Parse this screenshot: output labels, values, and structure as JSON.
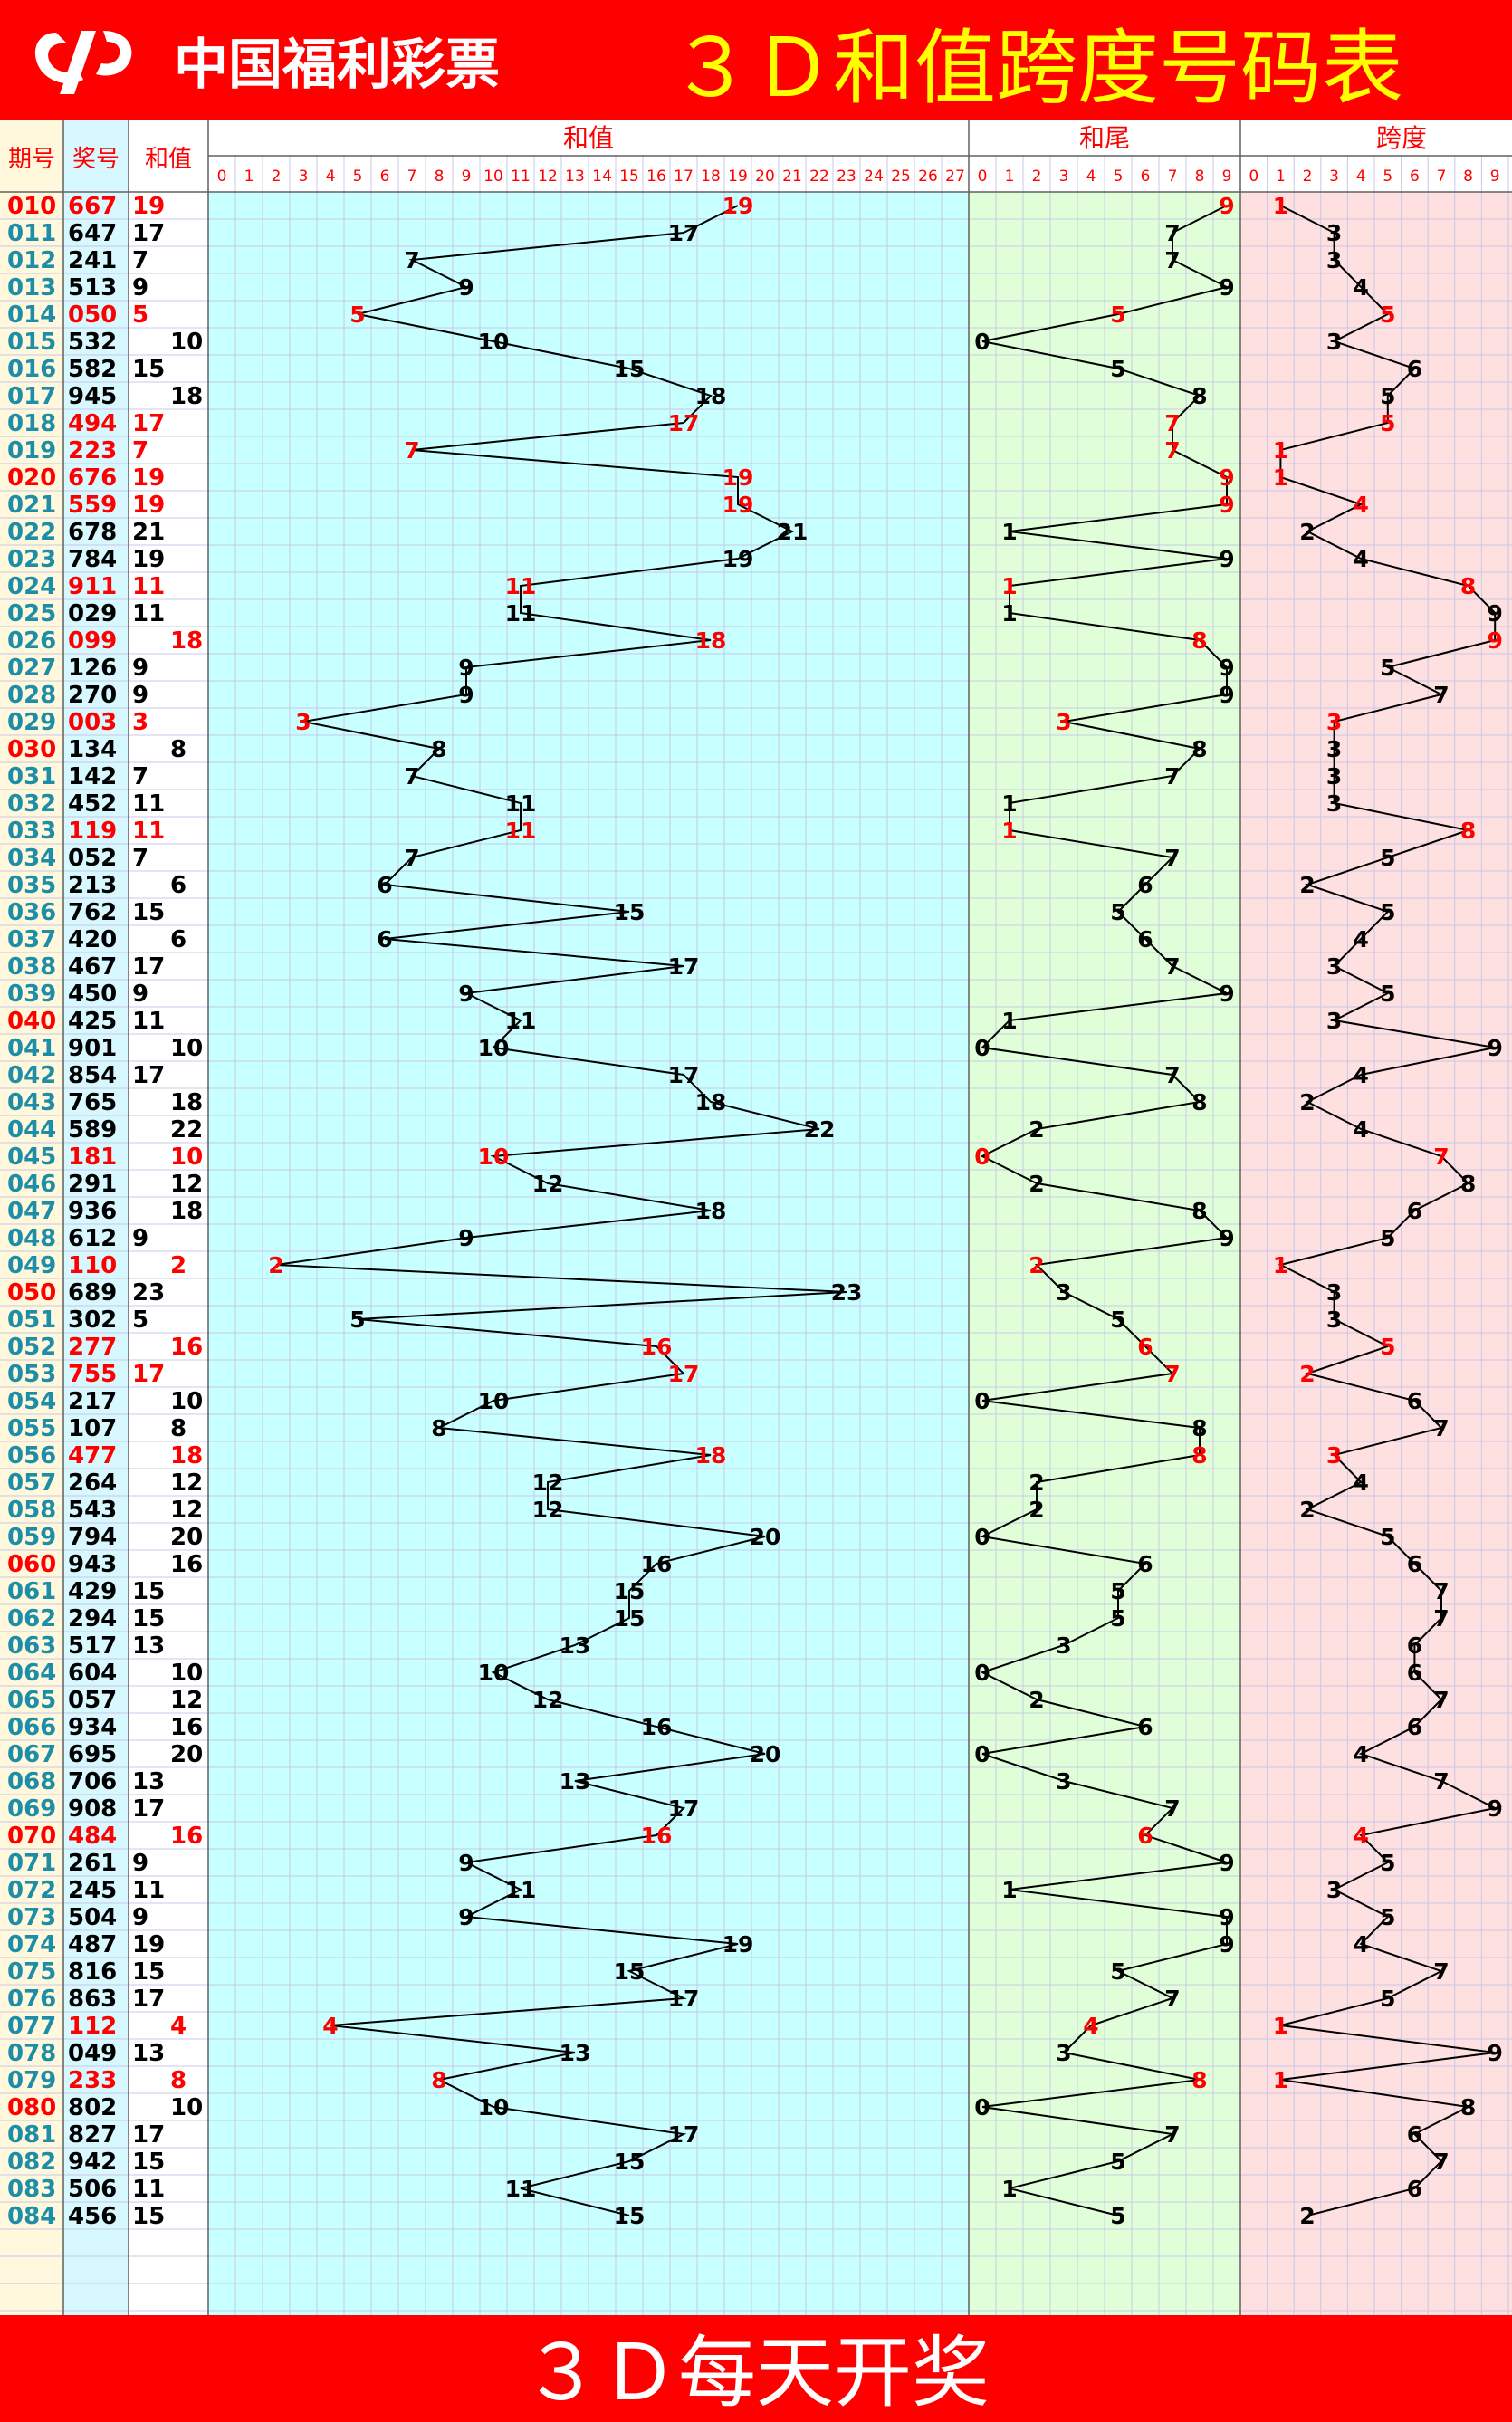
{
  "header": {
    "brand": "中国福利彩票",
    "title": "３Ｄ和值跨度号码表"
  },
  "footer": {
    "text": "３Ｄ每天开奖"
  },
  "columns": {
    "period": "期号",
    "number": "奖号",
    "sum": "和值",
    "sum_chart": "和值",
    "tail_chart": "和尾",
    "span_chart": "跨度"
  },
  "colors": {
    "header_bg": "#ff0000",
    "title_text": "#ffff00",
    "period_text": "#1e8ea8",
    "period_highlight": "#ff0000",
    "highlight_text": "#ff0000",
    "normal_text": "#000000",
    "sum_zone": "#c8ffff",
    "tail_zone": "#e0ffd8",
    "span_zone": "#ffe0e0",
    "period_zone": "#fff8dc",
    "number_zone": "#d8f8ff"
  },
  "chart_data": {
    "type": "line",
    "sum_axis": [
      "0",
      "1",
      "2",
      "3",
      "4",
      "5",
      "6",
      "7",
      "8",
      "9",
      "10",
      "11",
      "12",
      "13",
      "14",
      "15",
      "16",
      "17",
      "18",
      "19",
      "20",
      "21",
      "22",
      "23",
      "24",
      "25",
      "26",
      "27"
    ],
    "tail_axis": [
      "0",
      "1",
      "2",
      "3",
      "4",
      "5",
      "6",
      "7",
      "8",
      "9"
    ],
    "span_axis": [
      "0",
      "1",
      "2",
      "3",
      "4",
      "5",
      "6",
      "7",
      "8",
      "9"
    ],
    "rows": [
      {
        "period": "010",
        "number": "667",
        "sum": 19,
        "tail": 9,
        "span": 1,
        "red": true
      },
      {
        "period": "011",
        "number": "647",
        "sum": 17,
        "tail": 7,
        "span": 3,
        "red": false
      },
      {
        "period": "012",
        "number": "241",
        "sum": 7,
        "tail": 7,
        "span": 3,
        "red": false
      },
      {
        "period": "013",
        "number": "513",
        "sum": 9,
        "tail": 9,
        "span": 4,
        "red": false
      },
      {
        "period": "014",
        "number": "050",
        "sum": 5,
        "tail": 5,
        "span": 5,
        "red": true
      },
      {
        "period": "015",
        "number": "532",
        "sum": 10,
        "tail": 0,
        "span": 3,
        "red": false
      },
      {
        "period": "016",
        "number": "582",
        "sum": 15,
        "tail": 5,
        "span": 6,
        "red": false
      },
      {
        "period": "017",
        "number": "945",
        "sum": 18,
        "tail": 8,
        "span": 5,
        "red": false
      },
      {
        "period": "018",
        "number": "494",
        "sum": 17,
        "tail": 7,
        "span": 5,
        "red": true
      },
      {
        "period": "019",
        "number": "223",
        "sum": 7,
        "tail": 7,
        "span": 1,
        "red": true
      },
      {
        "period": "020",
        "number": "676",
        "sum": 19,
        "tail": 9,
        "span": 1,
        "red": true
      },
      {
        "period": "021",
        "number": "559",
        "sum": 19,
        "tail": 9,
        "span": 4,
        "red": true
      },
      {
        "period": "022",
        "number": "678",
        "sum": 21,
        "tail": 1,
        "span": 2,
        "red": false
      },
      {
        "period": "023",
        "number": "784",
        "sum": 19,
        "tail": 9,
        "span": 4,
        "red": false
      },
      {
        "period": "024",
        "number": "911",
        "sum": 11,
        "tail": 1,
        "span": 8,
        "red": true
      },
      {
        "period": "025",
        "number": "029",
        "sum": 11,
        "tail": 1,
        "span": 9,
        "red": false
      },
      {
        "period": "026",
        "number": "099",
        "sum": 18,
        "tail": 8,
        "span": 9,
        "red": true
      },
      {
        "period": "027",
        "number": "126",
        "sum": 9,
        "tail": 9,
        "span": 5,
        "red": false
      },
      {
        "period": "028",
        "number": "270",
        "sum": 9,
        "tail": 9,
        "span": 7,
        "red": false
      },
      {
        "period": "029",
        "number": "003",
        "sum": 3,
        "tail": 3,
        "span": 3,
        "red": true
      },
      {
        "period": "030",
        "number": "134",
        "sum": 8,
        "tail": 8,
        "span": 3,
        "red": false
      },
      {
        "period": "031",
        "number": "142",
        "sum": 7,
        "tail": 7,
        "span": 3,
        "red": false
      },
      {
        "period": "032",
        "number": "452",
        "sum": 11,
        "tail": 1,
        "span": 3,
        "red": false
      },
      {
        "period": "033",
        "number": "119",
        "sum": 11,
        "tail": 1,
        "span": 8,
        "red": true
      },
      {
        "period": "034",
        "number": "052",
        "sum": 7,
        "tail": 7,
        "span": 5,
        "red": false
      },
      {
        "period": "035",
        "number": "213",
        "sum": 6,
        "tail": 6,
        "span": 2,
        "red": false
      },
      {
        "period": "036",
        "number": "762",
        "sum": 15,
        "tail": 5,
        "span": 5,
        "red": false
      },
      {
        "period": "037",
        "number": "420",
        "sum": 6,
        "tail": 6,
        "span": 4,
        "red": false
      },
      {
        "period": "038",
        "number": "467",
        "sum": 17,
        "tail": 7,
        "span": 3,
        "red": false
      },
      {
        "period": "039",
        "number": "450",
        "sum": 9,
        "tail": 9,
        "span": 5,
        "red": false
      },
      {
        "period": "040",
        "number": "425",
        "sum": 11,
        "tail": 1,
        "span": 3,
        "red": false
      },
      {
        "period": "041",
        "number": "901",
        "sum": 10,
        "tail": 0,
        "span": 9,
        "red": false
      },
      {
        "period": "042",
        "number": "854",
        "sum": 17,
        "tail": 7,
        "span": 4,
        "red": false
      },
      {
        "period": "043",
        "number": "765",
        "sum": 18,
        "tail": 8,
        "span": 2,
        "red": false
      },
      {
        "period": "044",
        "number": "589",
        "sum": 22,
        "tail": 2,
        "span": 4,
        "red": false
      },
      {
        "period": "045",
        "number": "181",
        "sum": 10,
        "tail": 0,
        "span": 7,
        "red": true
      },
      {
        "period": "046",
        "number": "291",
        "sum": 12,
        "tail": 2,
        "span": 8,
        "red": false
      },
      {
        "period": "047",
        "number": "936",
        "sum": 18,
        "tail": 8,
        "span": 6,
        "red": false
      },
      {
        "period": "048",
        "number": "612",
        "sum": 9,
        "tail": 9,
        "span": 5,
        "red": false
      },
      {
        "period": "049",
        "number": "110",
        "sum": 2,
        "tail": 2,
        "span": 1,
        "red": true
      },
      {
        "period": "050",
        "number": "689",
        "sum": 23,
        "tail": 3,
        "span": 3,
        "red": false
      },
      {
        "period": "051",
        "number": "302",
        "sum": 5,
        "tail": 5,
        "span": 3,
        "red": false
      },
      {
        "period": "052",
        "number": "277",
        "sum": 16,
        "tail": 6,
        "span": 5,
        "red": true
      },
      {
        "period": "053",
        "number": "755",
        "sum": 17,
        "tail": 7,
        "span": 2,
        "red": true
      },
      {
        "period": "054",
        "number": "217",
        "sum": 10,
        "tail": 0,
        "span": 6,
        "red": false
      },
      {
        "period": "055",
        "number": "107",
        "sum": 8,
        "tail": 8,
        "span": 7,
        "red": false
      },
      {
        "period": "056",
        "number": "477",
        "sum": 18,
        "tail": 8,
        "span": 3,
        "red": true
      },
      {
        "period": "057",
        "number": "264",
        "sum": 12,
        "tail": 2,
        "span": 4,
        "red": false
      },
      {
        "period": "058",
        "number": "543",
        "sum": 12,
        "tail": 2,
        "span": 2,
        "red": false
      },
      {
        "period": "059",
        "number": "794",
        "sum": 20,
        "tail": 0,
        "span": 5,
        "red": false
      },
      {
        "period": "060",
        "number": "943",
        "sum": 16,
        "tail": 6,
        "span": 6,
        "red": false
      },
      {
        "period": "061",
        "number": "429",
        "sum": 15,
        "tail": 5,
        "span": 7,
        "red": false
      },
      {
        "period": "062",
        "number": "294",
        "sum": 15,
        "tail": 5,
        "span": 7,
        "red": false
      },
      {
        "period": "063",
        "number": "517",
        "sum": 13,
        "tail": 3,
        "span": 6,
        "red": false
      },
      {
        "period": "064",
        "number": "604",
        "sum": 10,
        "tail": 0,
        "span": 6,
        "red": false
      },
      {
        "period": "065",
        "number": "057",
        "sum": 12,
        "tail": 2,
        "span": 7,
        "red": false
      },
      {
        "period": "066",
        "number": "934",
        "sum": 16,
        "tail": 6,
        "span": 6,
        "red": false
      },
      {
        "period": "067",
        "number": "695",
        "sum": 20,
        "tail": 0,
        "span": 4,
        "red": false
      },
      {
        "period": "068",
        "number": "706",
        "sum": 13,
        "tail": 3,
        "span": 7,
        "red": false
      },
      {
        "period": "069",
        "number": "908",
        "sum": 17,
        "tail": 7,
        "span": 9,
        "red": false
      },
      {
        "period": "070",
        "number": "484",
        "sum": 16,
        "tail": 6,
        "span": 4,
        "red": true
      },
      {
        "period": "071",
        "number": "261",
        "sum": 9,
        "tail": 9,
        "span": 5,
        "red": false
      },
      {
        "period": "072",
        "number": "245",
        "sum": 11,
        "tail": 1,
        "span": 3,
        "red": false
      },
      {
        "period": "073",
        "number": "504",
        "sum": 9,
        "tail": 9,
        "span": 5,
        "red": false
      },
      {
        "period": "074",
        "number": "487",
        "sum": 19,
        "tail": 9,
        "span": 4,
        "red": false
      },
      {
        "period": "075",
        "number": "816",
        "sum": 15,
        "tail": 5,
        "span": 7,
        "red": false
      },
      {
        "period": "076",
        "number": "863",
        "sum": 17,
        "tail": 7,
        "span": 5,
        "red": false
      },
      {
        "period": "077",
        "number": "112",
        "sum": 4,
        "tail": 4,
        "span": 1,
        "red": true
      },
      {
        "period": "078",
        "number": "049",
        "sum": 13,
        "tail": 3,
        "span": 9,
        "red": false
      },
      {
        "period": "079",
        "number": "233",
        "sum": 8,
        "tail": 8,
        "span": 1,
        "red": true
      },
      {
        "period": "080",
        "number": "802",
        "sum": 10,
        "tail": 0,
        "span": 8,
        "red": false
      },
      {
        "period": "081",
        "number": "827",
        "sum": 17,
        "tail": 7,
        "span": 6,
        "red": false
      },
      {
        "period": "082",
        "number": "942",
        "sum": 15,
        "tail": 5,
        "span": 7,
        "red": false
      },
      {
        "period": "083",
        "number": "506",
        "sum": 11,
        "tail": 1,
        "span": 6,
        "red": false
      },
      {
        "period": "084",
        "number": "456",
        "sum": 15,
        "tail": 5,
        "span": 2,
        "red": false
      }
    ]
  }
}
